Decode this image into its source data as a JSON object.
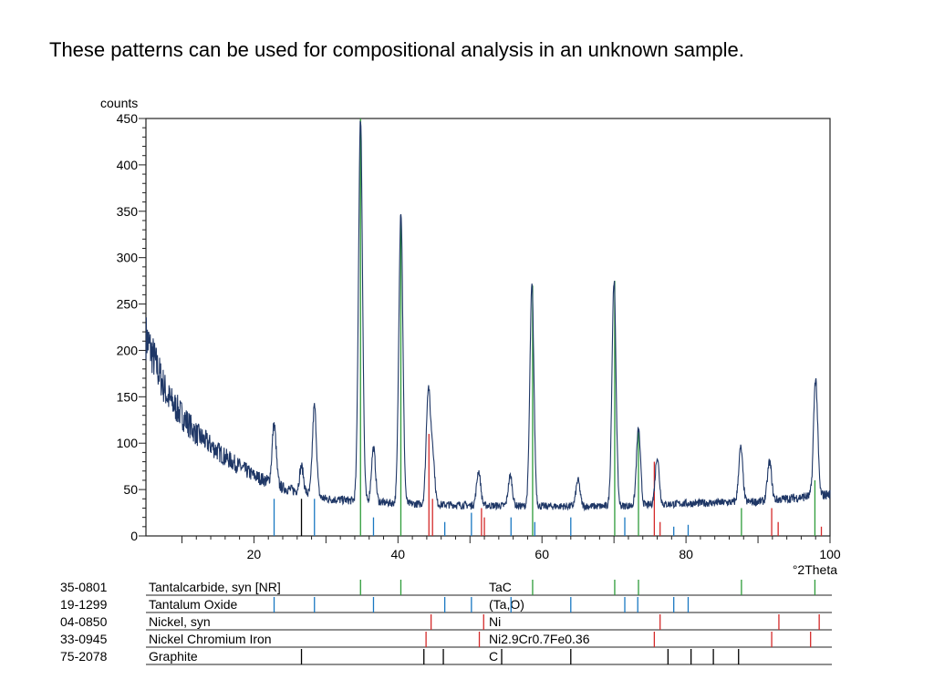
{
  "caption": "These patterns can be used for compositional analysis in an unknown sample.",
  "chart_data": {
    "type": "line",
    "ylabel": "counts",
    "xlabel": "°2Theta",
    "xlim": [
      5,
      100
    ],
    "ylim": [
      0,
      450
    ],
    "xticks": [
      20,
      40,
      60,
      80,
      100
    ],
    "yticks": [
      0,
      50,
      100,
      150,
      200,
      250,
      300,
      350,
      400,
      450
    ],
    "grid": false,
    "baseline": {
      "x": [
        5,
        8,
        12,
        16,
        20,
        24,
        30,
        40,
        50,
        60,
        70,
        80,
        90,
        100
      ],
      "y": [
        215,
        150,
        110,
        85,
        65,
        52,
        40,
        35,
        33,
        32,
        32,
        35,
        37,
        45
      ]
    },
    "peaks": [
      {
        "x": 22.8,
        "y": 120
      },
      {
        "x": 26.6,
        "y": 75
      },
      {
        "x": 28.4,
        "y": 140
      },
      {
        "x": 34.8,
        "y": 450
      },
      {
        "x": 36.6,
        "y": 95
      },
      {
        "x": 40.4,
        "y": 350
      },
      {
        "x": 44.2,
        "y": 155
      },
      {
        "x": 44.8,
        "y": 90
      },
      {
        "x": 51.2,
        "y": 70
      },
      {
        "x": 55.6,
        "y": 65
      },
      {
        "x": 58.6,
        "y": 270
      },
      {
        "x": 65.0,
        "y": 60
      },
      {
        "x": 70.0,
        "y": 275
      },
      {
        "x": 73.4,
        "y": 115
      },
      {
        "x": 76.0,
        "y": 85
      },
      {
        "x": 87.6,
        "y": 95
      },
      {
        "x": 91.6,
        "y": 80
      },
      {
        "x": 98.0,
        "y": 170
      }
    ],
    "reference_lines_in_plot": [
      {
        "x": 22.8,
        "h": 40,
        "color": "#1a78c2"
      },
      {
        "x": 26.6,
        "h": 40,
        "color": "#000000"
      },
      {
        "x": 28.4,
        "h": 40,
        "color": "#1a78c2"
      },
      {
        "x": 34.8,
        "h": 450,
        "color": "#2e9c3a"
      },
      {
        "x": 36.6,
        "h": 20,
        "color": "#1a78c2"
      },
      {
        "x": 40.4,
        "h": 340,
        "color": "#2e9c3a"
      },
      {
        "x": 44.3,
        "h": 110,
        "color": "#d42a2a"
      },
      {
        "x": 44.8,
        "h": 40,
        "color": "#d42a2a"
      },
      {
        "x": 46.5,
        "h": 15,
        "color": "#1a78c2"
      },
      {
        "x": 50.2,
        "h": 25,
        "color": "#1a78c2"
      },
      {
        "x": 51.6,
        "h": 30,
        "color": "#d42a2a"
      },
      {
        "x": 52.0,
        "h": 20,
        "color": "#d42a2a"
      },
      {
        "x": 55.7,
        "h": 20,
        "color": "#1a78c2"
      },
      {
        "x": 58.7,
        "h": 270,
        "color": "#2e9c3a"
      },
      {
        "x": 59.0,
        "h": 15,
        "color": "#1a78c2"
      },
      {
        "x": 64.0,
        "h": 20,
        "color": "#1a78c2"
      },
      {
        "x": 70.1,
        "h": 275,
        "color": "#2e9c3a"
      },
      {
        "x": 71.5,
        "h": 20,
        "color": "#1a78c2"
      },
      {
        "x": 73.4,
        "h": 115,
        "color": "#2e9c3a"
      },
      {
        "x": 75.6,
        "h": 80,
        "color": "#d42a2a"
      },
      {
        "x": 76.4,
        "h": 15,
        "color": "#d42a2a"
      },
      {
        "x": 78.3,
        "h": 10,
        "color": "#1a78c2"
      },
      {
        "x": 80.3,
        "h": 12,
        "color": "#1a78c2"
      },
      {
        "x": 87.7,
        "h": 30,
        "color": "#2e9c3a"
      },
      {
        "x": 91.9,
        "h": 30,
        "color": "#d42a2a"
      },
      {
        "x": 92.8,
        "h": 15,
        "color": "#d42a2a"
      },
      {
        "x": 97.9,
        "h": 60,
        "color": "#2e9c3a"
      },
      {
        "x": 98.8,
        "h": 10,
        "color": "#d42a2a"
      }
    ],
    "reference_patterns": [
      {
        "code": "35-0801",
        "name": "Tantalcarbide, syn [NR]",
        "formula": "TaC",
        "color": "#2e9c3a",
        "lines": [
          34.8,
          40.4,
          58.7,
          70.1,
          73.4,
          87.7,
          97.9
        ]
      },
      {
        "code": "19-1299",
        "name": "Tantalum Oxide",
        "formula": "(Ta,O)",
        "color": "#1a78c2",
        "lines": [
          22.8,
          28.4,
          36.6,
          46.5,
          50.2,
          55.7,
          64.0,
          71.5,
          73.3,
          78.3,
          80.3
        ]
      },
      {
        "code": "04-0850",
        "name": "Nickel, syn",
        "formula": "Ni",
        "color": "#d42a2a",
        "lines": [
          44.6,
          51.9,
          76.4,
          92.9,
          98.5
        ]
      },
      {
        "code": "33-0945",
        "name": "Nickel Chromium Iron",
        "formula": "Ni2.9Cr0.7Fe0.36",
        "color": "#d42a2a",
        "lines": [
          43.9,
          51.3,
          75.6,
          91.9,
          97.3
        ]
      },
      {
        "code": "75-2078",
        "name": "Graphite",
        "formula": "C",
        "color": "#000000",
        "lines": [
          26.6,
          43.6,
          46.3,
          54.4,
          64.0,
          77.5,
          80.7,
          83.8,
          87.3
        ]
      }
    ]
  }
}
